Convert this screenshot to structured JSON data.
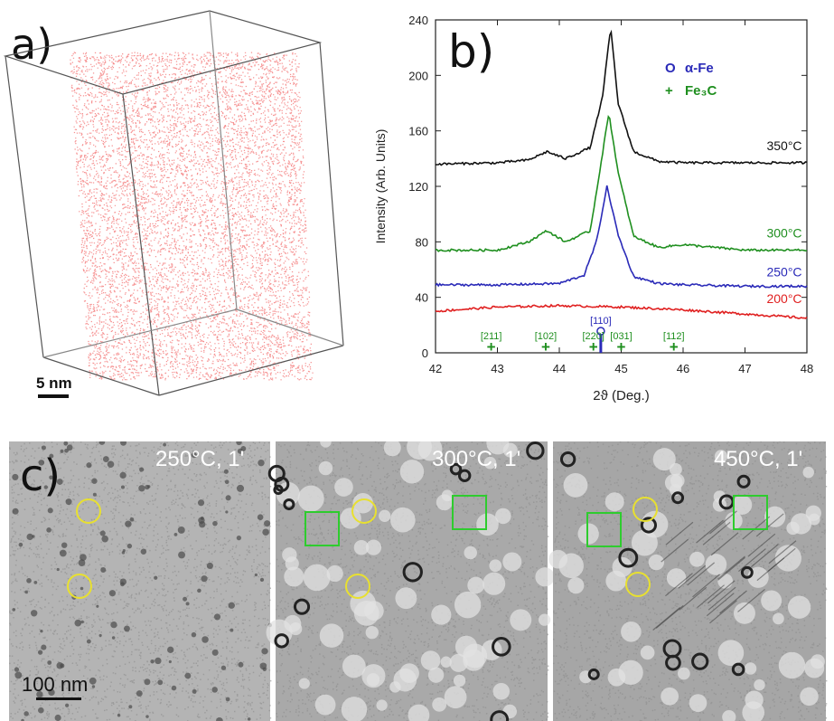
{
  "panel_a": {
    "label": "a)",
    "scale_bar": "5 nm"
  },
  "panel_b": {
    "label": "b)",
    "ylabel": "Intensity (Arb. Units)",
    "xlabel": "2ϑ (Deg.)",
    "xticks": [
      "42",
      "43",
      "44",
      "45",
      "46",
      "47",
      "48"
    ],
    "yticks": [
      "0",
      "40",
      "80",
      "120",
      "160",
      "200",
      "240"
    ],
    "legend": [
      {
        "symbol": "O",
        "name": "α-Fe",
        "color": "#2a2ab8"
      },
      {
        "symbol": "+",
        "name": "Fe₃C",
        "color": "#1f8f1f"
      }
    ],
    "peak_labels": {
      "fe": {
        "label": "[110]",
        "x": 44.67
      },
      "fe3c": [
        {
          "label": "[211]",
          "x": 42.9
        },
        {
          "label": "[102]",
          "x": 43.78
        },
        {
          "label": "[220]",
          "x": 44.55
        },
        {
          "label": "[031]",
          "x": 45.0
        },
        {
          "label": "[112]",
          "x": 45.85
        }
      ]
    },
    "curve_labels": [
      "350°C",
      "300°C",
      "250°C",
      "200°C"
    ]
  },
  "chart_data": {
    "type": "line",
    "xlabel": "2ϑ (Deg.)",
    "ylabel": "Intensity (Arb. Units)",
    "xlim": [
      42,
      48
    ],
    "ylim": [
      0,
      240
    ],
    "series": [
      {
        "name": "350°C",
        "color": "#111111",
        "x": [
          42,
          43,
          43.5,
          43.8,
          44.1,
          44.5,
          44.7,
          44.83,
          44.95,
          45.2,
          45.6,
          46,
          47,
          48
        ],
        "y": [
          136,
          137,
          139,
          145,
          140,
          148,
          185,
          235,
          180,
          145,
          138,
          137,
          137,
          137
        ]
      },
      {
        "name": "300°C",
        "color": "#1f8f1f",
        "x": [
          42,
          43,
          43.5,
          43.8,
          44.1,
          44.5,
          44.65,
          44.8,
          44.95,
          45.2,
          45.6,
          46,
          47,
          48
        ],
        "y": [
          74,
          74,
          80,
          88,
          80,
          88,
          130,
          173,
          130,
          84,
          76,
          78,
          74,
          74
        ]
      },
      {
        "name": "250°C",
        "color": "#2a2ab8",
        "x": [
          42,
          43,
          44,
          44.4,
          44.6,
          44.77,
          44.95,
          45.2,
          45.6,
          46,
          47,
          48
        ],
        "y": [
          49,
          49,
          50,
          56,
          80,
          120,
          85,
          55,
          50,
          49,
          48,
          48
        ]
      },
      {
        "name": "200°C",
        "color": "#e02020",
        "x": [
          42,
          43,
          44,
          45,
          46,
          47,
          48
        ],
        "y": [
          30,
          33,
          34,
          33,
          31,
          28,
          25
        ]
      }
    ]
  },
  "panel_c": {
    "label": "c)",
    "scale_bar": "100 nm",
    "images": [
      {
        "caption": "250°C, 1'"
      },
      {
        "caption": "300°C, 1'"
      },
      {
        "caption": "450°C, 1'"
      }
    ],
    "marker_colors": {
      "yellow_circle": "#e8e030",
      "green_square": "#2ecc2e"
    }
  }
}
